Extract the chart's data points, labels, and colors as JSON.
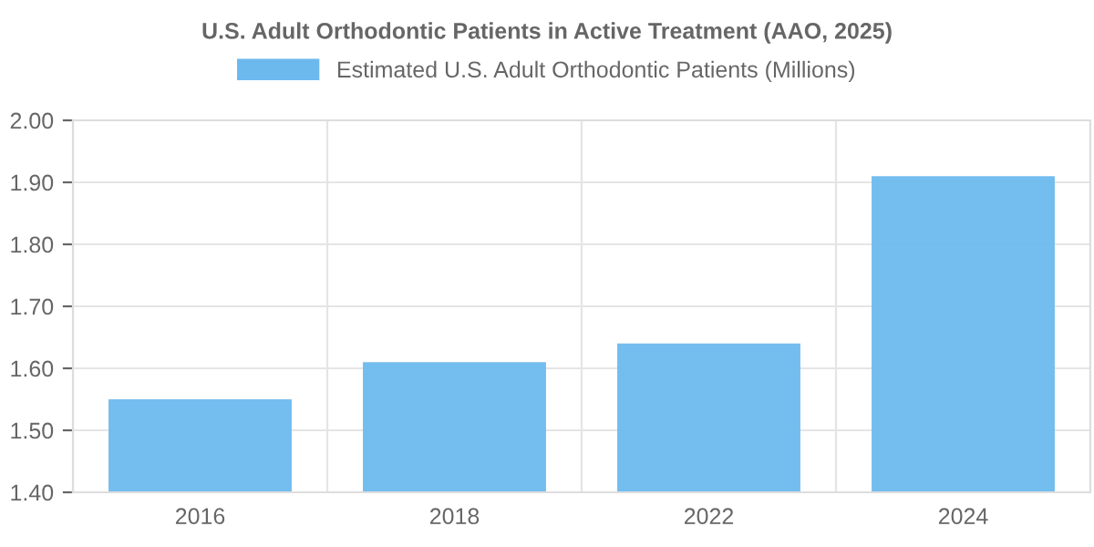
{
  "chart_data": {
    "type": "bar",
    "title": "U.S. Adult Orthodontic Patients in Active Treatment (AAO, 2025)",
    "categories": [
      "2016",
      "2018",
      "2022",
      "2024"
    ],
    "series": [
      {
        "name": "Estimated U.S. Adult Orthodontic Patients (Millions)",
        "color": "#6cb9ee",
        "values": [
          1.55,
          1.61,
          1.64,
          1.91
        ]
      }
    ],
    "ylim": [
      1.4,
      2.0
    ],
    "yticks": [
      {
        "value": 1.4,
        "label": "1.40"
      },
      {
        "value": 1.5,
        "label": "1.50"
      },
      {
        "value": 1.6,
        "label": "1.60"
      },
      {
        "value": 1.7,
        "label": "1.70"
      },
      {
        "value": 1.8,
        "label": "1.80"
      },
      {
        "value": 1.9,
        "label": "1.90"
      },
      {
        "value": 2.0,
        "label": "2.00"
      }
    ],
    "grid": true,
    "legend": "top"
  }
}
